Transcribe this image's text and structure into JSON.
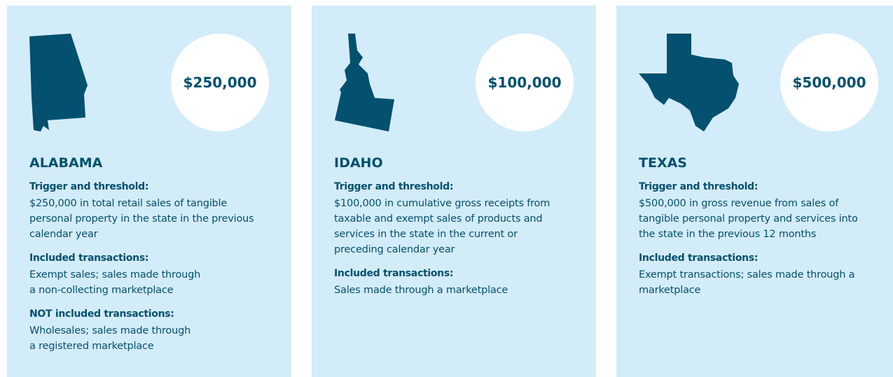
{
  "cards": [
    {
      "state": "ALABAMA",
      "amount": "$250,000",
      "sections": [
        {
          "heading": "Trigger and threshold:",
          "lines": [
            "$250,000 in total retail sales of tangible",
            "personal property in the state in the previous",
            "calendar year"
          ]
        },
        {
          "heading": "Included transactions:",
          "lines": [
            "Exempt sales; sales made through",
            "a non-collecting marketplace"
          ]
        },
        {
          "heading": "NOT included transactions:",
          "lines": [
            "Wholesales; sales made through",
            "a registered marketplace"
          ]
        }
      ]
    },
    {
      "state": "IDAHO",
      "amount": "$100,000",
      "sections": [
        {
          "heading": "Trigger and threshold:",
          "lines": [
            "$100,000 in cumulative gross receipts from",
            "taxable and exempt sales of products and",
            "services in the state in the current or",
            "preceding calendar year"
          ]
        },
        {
          "heading": "Included transactions:",
          "lines": [
            "Sales made through a marketplace"
          ]
        }
      ]
    },
    {
      "state": "TEXAS",
      "amount": "$500,000",
      "sections": [
        {
          "heading": "Trigger and threshold:",
          "lines": [
            "$500,000 in gross revenue from sales of",
            "tangible personal property and services into",
            "the state in the previous 12 months"
          ]
        },
        {
          "heading": "Included transactions:",
          "lines": [
            "Exempt transactions; sales made through a",
            "marketplace"
          ]
        }
      ]
    }
  ]
}
